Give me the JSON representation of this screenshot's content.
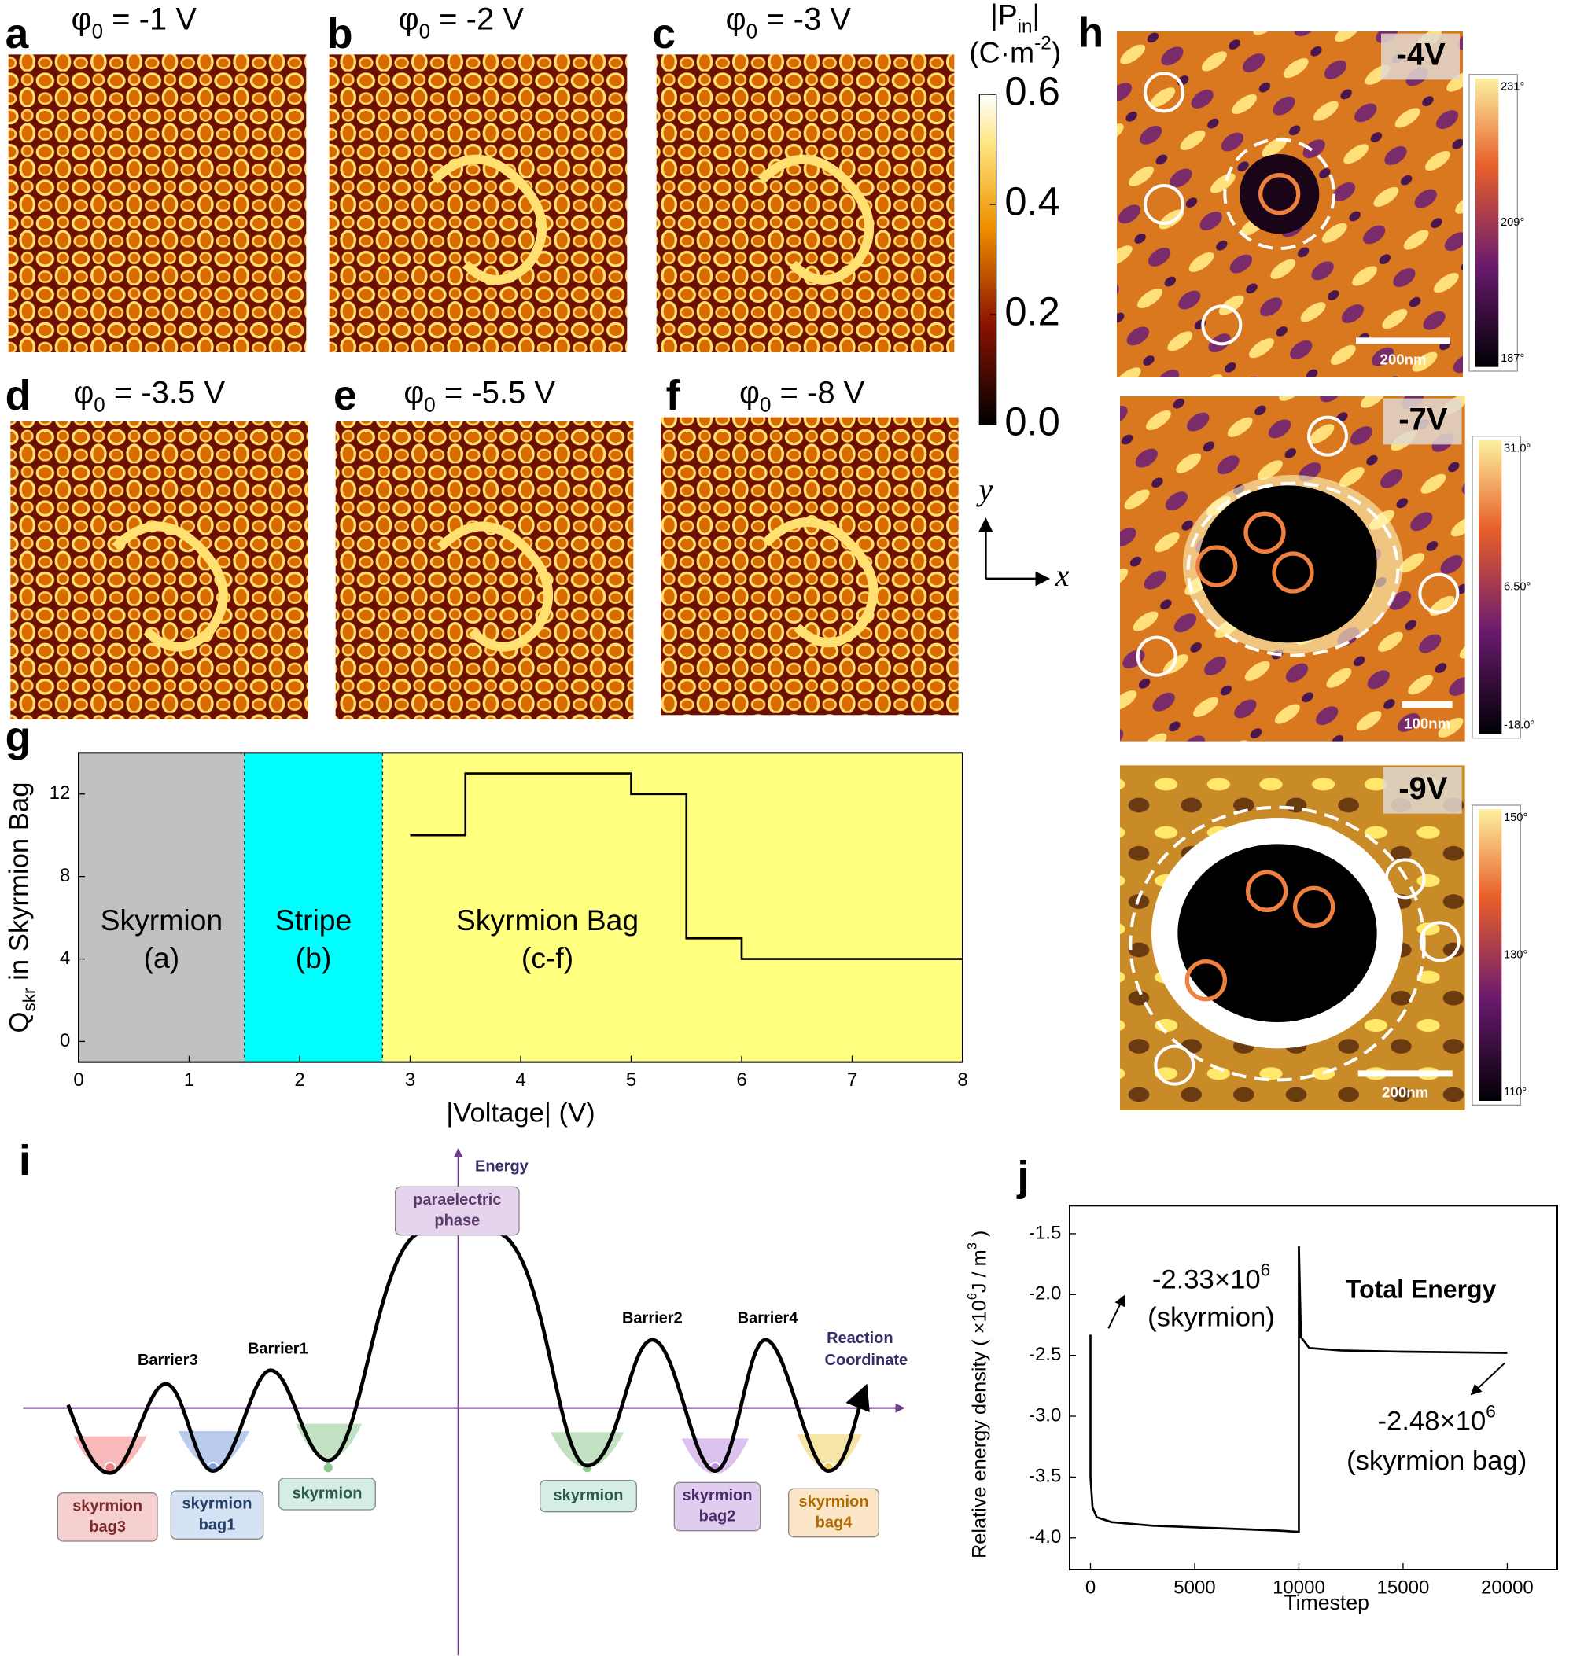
{
  "panels": [
    {
      "letter": "a",
      "label": [
        "φ",
        {
          "sub": "0"
        },
        " = -1 V"
      ]
    },
    {
      "letter": "b",
      "label": [
        "φ",
        {
          "sub": "0"
        },
        " = -2 V"
      ]
    },
    {
      "letter": "c",
      "label": [
        "φ",
        {
          "sub": "0"
        },
        " = -3 V"
      ]
    },
    {
      "letter": "d",
      "label": [
        "φ",
        {
          "sub": "0"
        },
        " = -3.5 V"
      ]
    },
    {
      "letter": "e",
      "label": [
        "φ",
        {
          "sub": "0"
        },
        " = -5.5 V"
      ]
    },
    {
      "letter": "f",
      "label": [
        "φ",
        {
          "sub": "0"
        },
        " = -8 V"
      ]
    }
  ],
  "colorbar": {
    "title": [
      "|P",
      {
        "sub": "in"
      },
      "|"
    ],
    "unit": [
      "(C·m",
      {
        "sup": "-2"
      },
      ")"
    ],
    "lim": [
      0,
      0.6
    ],
    "ticks": [
      0.6,
      0.4,
      0.2,
      {
        "value": 0,
        "label": "0.0"
      }
    ]
  },
  "axes_hint": {
    "y": "y",
    "x": "x"
  },
  "panel_h": {
    "letter": "h",
    "images": [
      {
        "voltage": "-4V",
        "scale_bar": "200nm",
        "colorbar": [
          "231°",
          "209°",
          "187°"
        ]
      },
      {
        "voltage": "-7V",
        "scale_bar": "100nm",
        "colorbar": [
          "31.0°",
          "6.50°",
          "-18.0°"
        ]
      },
      {
        "voltage": "-9V",
        "scale_bar": "200nm",
        "colorbar": [
          "150°",
          "130°",
          "110°"
        ]
      }
    ]
  },
  "panel_i": {
    "letter": "i",
    "axis_y": "Energy",
    "axis_x": [
      "Reaction",
      "Coordinate"
    ],
    "top_state": [
      "paraelectric",
      "phase"
    ],
    "barriers": [
      "Barrier3",
      "Barrier1",
      "Barrier2",
      "Barrier4"
    ],
    "states": [
      [
        "skyrmion",
        "bag3"
      ],
      [
        "skyrmion",
        "bag1"
      ],
      [
        "skyrmion"
      ],
      [
        "skyrmion"
      ],
      [
        "skyrmion",
        "bag2"
      ],
      [
        "skyrmion",
        "bag4"
      ]
    ]
  },
  "chart_data": [
    {
      "type": "line",
      "letter": "g",
      "xlabel": "|Voltage| (V)",
      "ylabel": [
        "Q",
        {
          "sub": "skr"
        },
        " in Skyrmion Bag"
      ],
      "xlim": [
        0,
        8
      ],
      "ylim": [
        -1,
        14
      ],
      "xticks": [
        0,
        1,
        2,
        3,
        4,
        5,
        6,
        7,
        8
      ],
      "yticks": [
        0,
        4,
        8,
        12
      ],
      "regions": [
        {
          "name": "Skyrmion",
          "panel": "(a)",
          "start": 0,
          "end": 1.5,
          "color": "#c0c0c0"
        },
        {
          "name": "Stripe",
          "panel": "(b)",
          "start": 1.5,
          "end": 2.75,
          "color": "#00ffff"
        },
        {
          "name": "Skyrmion Bag",
          "panel": "(c-f)",
          "start": 2.75,
          "end": 8,
          "color": "#ffff80"
        }
      ],
      "x": [
        3,
        3.5,
        3.5,
        5,
        5,
        5.5,
        5.5,
        6,
        6,
        8
      ],
      "series": [
        {
          "color": "#000000",
          "values": [
            10,
            10,
            13,
            13,
            12,
            12,
            5,
            5,
            4,
            4
          ]
        }
      ]
    },
    {
      "type": "line",
      "letter": "j",
      "xlabel": "Timestep",
      "ylabel": [
        "Relative energy density ( ×10",
        {
          "sup": "6"
        },
        "J / m",
        {
          "sup": "3"
        },
        " )"
      ],
      "xlim": [
        -1000,
        22400
      ],
      "ylim": [
        -4.26,
        -1.27
      ],
      "xticks": [
        0,
        5000,
        10000,
        15000,
        20000
      ],
      "yticks": [
        {
          "value": -4,
          "label": "-4.0"
        },
        -3.5,
        {
          "value": -3,
          "label": "-3.0"
        },
        -2.5,
        {
          "value": -2,
          "label": "-2.0"
        },
        -1.5
      ],
      "x": [
        0,
        0,
        100,
        300,
        1000,
        3000,
        6000,
        9000,
        9950,
        10000,
        10000,
        10100,
        10500,
        12000,
        15000,
        20000
      ],
      "series": [
        {
          "color": "#000000",
          "values": [
            -2.33,
            -3.5,
            -3.75,
            -3.83,
            -3.87,
            -3.9,
            -3.92,
            -3.94,
            -3.95,
            -3.95,
            -1.6,
            -2.35,
            -2.44,
            -2.46,
            -2.47,
            -2.48
          ]
        }
      ],
      "annotations": [
        [
          "-2.33×10",
          {
            "sup": "6"
          }
        ],
        [
          "(skyrmion)"
        ],
        [
          "Total Energy"
        ],
        [
          "-2.48×10",
          {
            "sup": "6"
          }
        ],
        [
          "(skyrmion bag)"
        ]
      ]
    }
  ]
}
